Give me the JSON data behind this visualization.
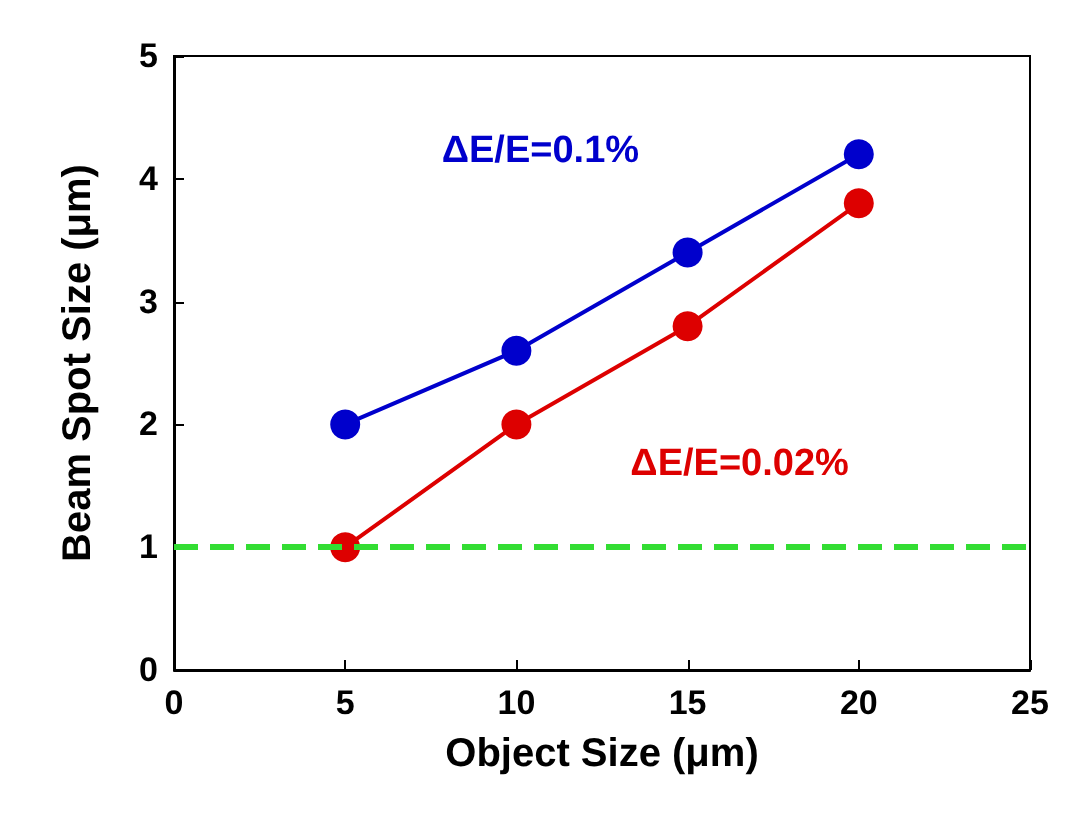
{
  "chart_data": {
    "type": "line",
    "xlabel": "Object Size (μm)",
    "ylabel": "Beam Spot Size (μm)",
    "x": [
      5,
      10,
      15,
      20
    ],
    "series": [
      {
        "name": "ΔE/E=0.1%",
        "color": "#0000cc",
        "values": [
          2,
          2.6,
          3.4,
          4.2
        ]
      },
      {
        "name": "ΔE/E=0.02%",
        "color": "#dd0000",
        "values": [
          1,
          2,
          2.8,
          3.8
        ]
      }
    ],
    "xlim": [
      0,
      25
    ],
    "xticks": [
      0,
      5,
      10,
      15,
      20,
      25
    ],
    "ylim": [
      0,
      5
    ],
    "yticks": [
      0,
      1,
      2,
      3,
      4,
      5
    ],
    "ref_lines": [
      {
        "axis": "y",
        "value": 1,
        "color": "#33dd33",
        "line_style": "dashed"
      }
    ],
    "grid": false,
    "legend": false,
    "marker": "circle",
    "line_style": "solid"
  }
}
